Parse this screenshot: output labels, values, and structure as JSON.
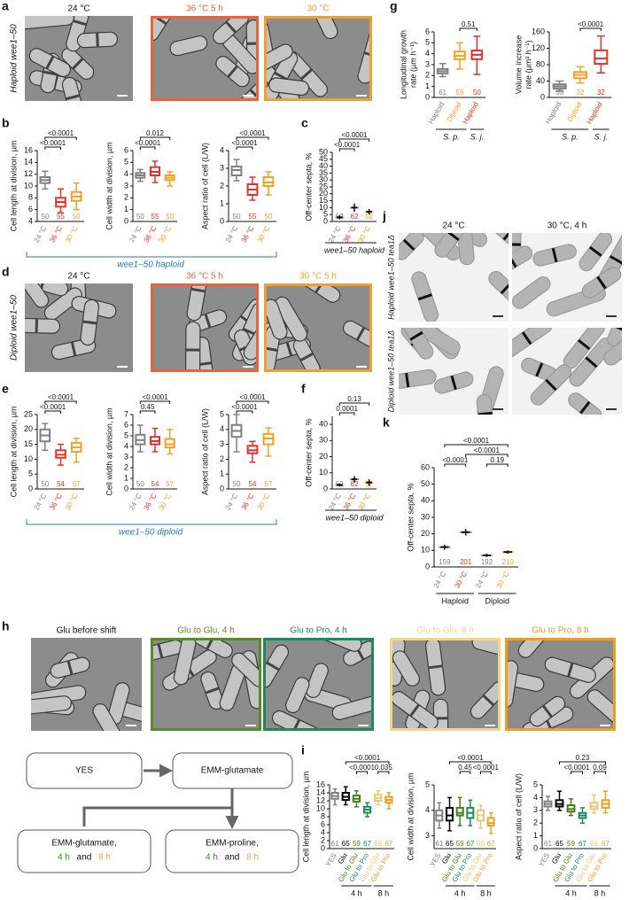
{
  "panel_labels": [
    "a",
    "b",
    "c",
    "d",
    "e",
    "f",
    "g",
    "h",
    "i",
    "j",
    "k"
  ],
  "images": {
    "a": {
      "side_label": "Haploid wee1–50",
      "frames": [
        {
          "label": "24 °C",
          "border": null
        },
        {
          "label": "36 °C 5 h",
          "border": "#e8643c"
        },
        {
          "label": "30 °C",
          "border": "#f0a030"
        }
      ]
    },
    "d": {
      "side_label": "Diploid wee1–50",
      "frames": [
        {
          "label": "24 °C",
          "border": null
        },
        {
          "label": "36 °C 5 h",
          "border": "#e8643c"
        },
        {
          "label": "30 °C 5 h",
          "border": "#f0a030"
        }
      ]
    },
    "j": {
      "columns": [
        "24 °C",
        "30 °C, 4 h"
      ],
      "rows": [
        "Haploid wee1–50 tea1Δ",
        "Diploid wee1–50 tea1Δ"
      ]
    },
    "h": {
      "frames": [
        {
          "label": "Glu before shift",
          "border": null
        },
        {
          "label": "Glu to Glu, 4 h",
          "border": "#5a8a2a"
        },
        {
          "label": "Glu to Pro, 4 h",
          "border": "#1e8a5a"
        },
        {
          "label": "Glu to Glu, 8 h",
          "border": "#f3d58a"
        },
        {
          "label": "Glu to Pro, 8 h",
          "border": "#e8a020"
        }
      ]
    }
  },
  "annotations": [
    "wee1–50 haploid",
    "wee1–50 diploid"
  ],
  "diagram": {
    "yes": "YES",
    "emm_glu": "EMM-glutamate",
    "left": {
      "line1": "EMM-glutamate,",
      "t1": "4 h",
      "and": "and",
      "t2": "8 h"
    },
    "right": {
      "line1": "EMM-proline,",
      "t1": "4 h",
      "and": "and",
      "t2": "8 h"
    }
  },
  "chart_data": [
    {
      "type": "box",
      "ylabel": "Cell length at division, µm",
      "ylim": [
        4,
        16
      ],
      "yticks": [
        4,
        6,
        8,
        10,
        12,
        14,
        16
      ],
      "categories": [
        "24 °C",
        "36 °C",
        "30 °C"
      ],
      "colors": [
        "#808080",
        "#e8302a",
        "#f5a020"
      ],
      "boxes": [
        {
          "min": 9.5,
          "q1": 10.5,
          "median": 11,
          "q3": 11.5,
          "max": 12.5
        },
        {
          "min": 5.5,
          "q1": 6.5,
          "median": 7.3,
          "q3": 8,
          "max": 9.5
        },
        {
          "min": 6,
          "q1": 7.5,
          "median": 8.2,
          "q3": 9,
          "max": 10.5
        }
      ],
      "n": [
        50,
        55,
        50
      ],
      "comparisons": [
        "<0.0001",
        "<0.0001"
      ]
    },
    {
      "type": "box",
      "ylabel": "Cell width at division, µm",
      "ylim": [
        0,
        6
      ],
      "yticks": [
        0,
        1,
        2,
        3,
        4,
        5,
        6
      ],
      "categories": [
        "24 °C",
        "36 °C",
        "30 °C"
      ],
      "colors": [
        "#808080",
        "#e8302a",
        "#f5a020"
      ],
      "boxes": [
        {
          "min": 3.4,
          "q1": 3.7,
          "median": 3.9,
          "q3": 4.1,
          "max": 4.4
        },
        {
          "min": 3.3,
          "q1": 3.9,
          "median": 4.2,
          "q3": 4.6,
          "max": 5.1
        },
        {
          "min": 3,
          "q1": 3.5,
          "median": 3.7,
          "q3": 3.9,
          "max": 4.2
        }
      ],
      "n": [
        50,
        55,
        50
      ],
      "comparisons": [
        "0.012",
        "<0.0001"
      ]
    },
    {
      "type": "box",
      "ylabel": "Aspect ratio of cell (L/W)",
      "ylim": [
        0,
        4
      ],
      "yticks": [
        0,
        1,
        2,
        3,
        4
      ],
      "categories": [
        "24 °C",
        "36 °C",
        "30 °C"
      ],
      "colors": [
        "#808080",
        "#e8302a",
        "#f5a020"
      ],
      "boxes": [
        {
          "min": 2.3,
          "q1": 2.6,
          "median": 2.9,
          "q3": 3.1,
          "max": 3.5
        },
        {
          "min": 1.2,
          "q1": 1.5,
          "median": 1.8,
          "q3": 2.1,
          "max": 2.5
        },
        {
          "min": 1.5,
          "q1": 2,
          "median": 2.2,
          "q3": 2.5,
          "max": 2.8
        }
      ],
      "n": [
        50,
        55,
        50
      ],
      "comparisons": [
        "<0.0001",
        "<0.0001"
      ]
    },
    {
      "type": "dot",
      "ylabel": "Off-center septa, %",
      "ylim": [
        0,
        50
      ],
      "yticks": [
        0,
        5,
        10,
        15,
        20,
        25,
        30,
        35,
        40,
        45,
        50
      ],
      "categories": [
        "24 °C",
        "36 °C",
        "30 °C"
      ],
      "colors": [
        "#808080",
        "#e8302a",
        "#f5a020"
      ],
      "means": [
        3,
        10,
        7
      ],
      "errors": [
        1.5,
        3,
        2
      ],
      "n": [
        52,
        62,
        52
      ],
      "comparisons": [
        "<0.0001",
        "<0.0001"
      ],
      "xlabel": "wee1–50 haploid"
    },
    {
      "type": "box",
      "ylabel": "Cell length at division, µm",
      "ylim": [
        0,
        25
      ],
      "yticks": [
        0,
        5,
        10,
        15,
        20,
        25
      ],
      "categories": [
        "24 °C",
        "36 °C",
        "30 °C"
      ],
      "colors": [
        "#808080",
        "#e8302a",
        "#f5a020"
      ],
      "boxes": [
        {
          "min": 13,
          "q1": 16,
          "median": 18,
          "q3": 20,
          "max": 22
        },
        {
          "min": 8,
          "q1": 10.5,
          "median": 11.5,
          "q3": 13,
          "max": 15
        },
        {
          "min": 9,
          "q1": 12.5,
          "median": 14,
          "q3": 15.5,
          "max": 17
        }
      ],
      "n": [
        50,
        54,
        57
      ],
      "comparisons": [
        "<0.0001",
        "<0.0001"
      ]
    },
    {
      "type": "box",
      "ylabel": "Cell width at division, µm",
      "ylim": [
        0,
        7
      ],
      "yticks": [
        0,
        1,
        2,
        3,
        4,
        5,
        6,
        7
      ],
      "categories": [
        "24 °C",
        "36 °C",
        "30 °C"
      ],
      "colors": [
        "#808080",
        "#e8302a",
        "#f5a020"
      ],
      "boxes": [
        {
          "min": 3.5,
          "q1": 4.2,
          "median": 4.6,
          "q3": 5.1,
          "max": 6
        },
        {
          "min": 3.5,
          "q1": 4.2,
          "median": 4.5,
          "q3": 4.9,
          "max": 5.7
        },
        {
          "min": 3.3,
          "q1": 3.9,
          "median": 4.2,
          "q3": 4.7,
          "max": 5.6
        }
      ],
      "n": [
        50,
        54,
        57
      ],
      "comparisons": [
        "<0.0001",
        "0.45"
      ]
    },
    {
      "type": "box",
      "ylabel": "Aspect ratio of cell (L/W)",
      "ylim": [
        0,
        5
      ],
      "yticks": [
        0,
        1,
        2,
        3,
        4,
        5
      ],
      "categories": [
        "24 °C",
        "36 °C",
        "30 °C"
      ],
      "colors": [
        "#808080",
        "#e8302a",
        "#f5a020"
      ],
      "boxes": [
        {
          "min": 2.5,
          "q1": 3.5,
          "median": 3.9,
          "q3": 4.3,
          "max": 5
        },
        {
          "min": 1.8,
          "q1": 2.4,
          "median": 2.6,
          "q3": 2.9,
          "max": 3.2
        },
        {
          "min": 2.2,
          "q1": 3,
          "median": 3.4,
          "q3": 3.7,
          "max": 4.1
        }
      ],
      "n": [
        50,
        54,
        57
      ],
      "comparisons": [
        "<0.0001",
        "<0.0001"
      ]
    },
    {
      "type": "dot",
      "ylabel": "Off-center septa, %",
      "ylim": [
        0,
        45
      ],
      "yticks": [
        0,
        10,
        20,
        30,
        40
      ],
      "categories": [
        "24 °C",
        "36 °C",
        "30 °C"
      ],
      "colors": [
        "#808080",
        "#e8302a",
        "#f5a020"
      ],
      "means": [
        2.5,
        6,
        4
      ],
      "errors": [
        1,
        2,
        2
      ],
      "n": [
        52,
        62,
        52
      ],
      "comparisons": [
        "0.13",
        "0.0001"
      ],
      "xlabel": "wee1–50 diploid"
    },
    {
      "type": "box",
      "ylabel": [
        "Longitudinal growth",
        "rate (µm h⁻¹)"
      ],
      "ylim": [
        0,
        6
      ],
      "yticks": [
        0,
        1,
        2,
        3,
        4,
        5,
        6
      ],
      "categories": [
        "Haploid",
        "Diploid",
        "Haploid"
      ],
      "colors": [
        "#808080",
        "#f5a020",
        "#e8302a"
      ],
      "boxes": [
        {
          "min": 1.9,
          "q1": 2.2,
          "median": 2.4,
          "q3": 2.6,
          "max": 3.1
        },
        {
          "min": 2.6,
          "q1": 3.5,
          "median": 3.8,
          "q3": 4.2,
          "max": 5
        },
        {
          "min": 2.1,
          "q1": 3.5,
          "median": 3.9,
          "q3": 4.3,
          "max": 5.6
        }
      ],
      "n": [
        61,
        59,
        50
      ],
      "comparisons": [
        "0.51"
      ],
      "groups": [
        "S. p.",
        "S. j."
      ]
    },
    {
      "type": "box",
      "ylabel": [
        "Volume increase",
        "rate (µm³ h⁻¹)"
      ],
      "ylim": [
        0,
        160
      ],
      "yticks": [
        0,
        40,
        80,
        120,
        160
      ],
      "categories": [
        "Haploid",
        "Diploid",
        "Haploid"
      ],
      "colors": [
        "#808080",
        "#f5a020",
        "#e8302a"
      ],
      "boxes": [
        {
          "min": 15,
          "q1": 22,
          "median": 27,
          "q3": 32,
          "max": 40
        },
        {
          "min": 35,
          "q1": 47,
          "median": 55,
          "q3": 62,
          "max": 75
        },
        {
          "min": 60,
          "q1": 82,
          "median": 95,
          "q3": 115,
          "max": 150
        }
      ],
      "n": [
        33,
        32,
        32
      ],
      "comparisons": [
        "<0.0001"
      ],
      "groups": [
        "S. p.",
        "S. j."
      ]
    },
    {
      "type": "dot",
      "ylabel": "Off-center septa, %",
      "ylim": [
        0,
        60
      ],
      "yticks": [
        0,
        10,
        20,
        30,
        40,
        50,
        60
      ],
      "categories": [
        "24 °C",
        "30 °C",
        "24 °C",
        "30 °C"
      ],
      "colors": [
        "#808080",
        "#e8302a",
        "#808080",
        "#f5a020"
      ],
      "means": [
        12,
        21,
        7,
        9
      ],
      "errors": [
        1.5,
        2,
        1,
        1
      ],
      "n": [
        159,
        201,
        192,
        210
      ],
      "comparisons": [
        "<0.0001",
        "<0.0001",
        "<0.0001",
        "0.19"
      ],
      "groups": [
        "Haploid",
        "Diploid"
      ]
    },
    {
      "type": "box",
      "ylabel": "Cell length at division, µm",
      "ylim": [
        0,
        16
      ],
      "yticks": [
        0,
        2,
        4,
        6,
        8,
        10,
        12,
        14,
        16
      ],
      "categories": [
        "YES",
        "Glu",
        "Glu to Glu",
        "Glu to Pro",
        "Glu to Glu",
        "Glu to Pro"
      ],
      "colors": [
        "#808080",
        "#000000",
        "#4a7a1e",
        "#1a8a5a",
        "#e8c870",
        "#e8a020"
      ],
      "boxes": [
        {
          "min": 11,
          "q1": 12.5,
          "median": 13.2,
          "q3": 14,
          "max": 15
        },
        {
          "min": 11,
          "q1": 12.2,
          "median": 13,
          "q3": 14,
          "max": 15.5
        },
        {
          "min": 10.5,
          "q1": 11.8,
          "median": 12.5,
          "q3": 13.3,
          "max": 14.5
        },
        {
          "min": 8,
          "q1": 9,
          "median": 9.8,
          "q3": 10.5,
          "max": 11.5
        },
        {
          "min": 11,
          "q1": 12,
          "median": 12.7,
          "q3": 13.5,
          "max": 14.5
        },
        {
          "min": 10,
          "q1": 11.5,
          "median": 12.2,
          "q3": 13,
          "max": 14
        }
      ],
      "n": [
        61,
        65,
        59,
        67,
        69,
        67
      ],
      "comparisons": [
        "<0.0001",
        "<0.0001",
        "0.035"
      ],
      "groups": [
        "4 h",
        "8 h"
      ]
    },
    {
      "type": "box",
      "ylabel": "Cell width at division, µm",
      "ylim": [
        2.5,
        5
      ],
      "yticks": [
        3,
        4,
        5
      ],
      "categories": [
        "YES",
        "Glu",
        "Glu to Glu",
        "Glu to Pro",
        "Glu to Glu",
        "Glu to Pro"
      ],
      "colors": [
        "#808080",
        "#000000",
        "#4a7a1e",
        "#1a8a5a",
        "#e8c870",
        "#e8a020"
      ],
      "boxes": [
        {
          "min": 3.3,
          "q1": 3.6,
          "median": 3.8,
          "q3": 4,
          "max": 4.3
        },
        {
          "min": 3.2,
          "q1": 3.6,
          "median": 3.8,
          "q3": 4.1,
          "max": 4.5
        },
        {
          "min": 3.4,
          "q1": 3.8,
          "median": 3.9,
          "q3": 4.1,
          "max": 4.5
        },
        {
          "min": 3.4,
          "q1": 3.7,
          "median": 3.9,
          "q3": 4.1,
          "max": 4.4
        },
        {
          "min": 3.3,
          "q1": 3.6,
          "median": 3.8,
          "q3": 4,
          "max": 4.2
        },
        {
          "min": 3.1,
          "q1": 3.4,
          "median": 3.5,
          "q3": 3.7,
          "max": 3.9
        }
      ],
      "n": [
        61,
        65,
        59,
        67,
        69,
        67
      ],
      "comparisons": [
        "<0.0001",
        "0.45",
        "<0.0001"
      ],
      "groups": [
        "4 h",
        "8 h"
      ]
    },
    {
      "type": "box",
      "ylabel": "Aspect ratio of cell (L/W)",
      "ylim": [
        0,
        5
      ],
      "yticks": [
        0,
        1,
        2,
        3,
        4,
        5
      ],
      "categories": [
        "YES",
        "Glu",
        "Glu to Glu",
        "Glu to Pro",
        "Glu to Glu",
        "Glu to Pro"
      ],
      "colors": [
        "#808080",
        "#000000",
        "#4a7a1e",
        "#1a8a5a",
        "#e8c870",
        "#e8a020"
      ],
      "boxes": [
        {
          "min": 3,
          "q1": 3.3,
          "median": 3.5,
          "q3": 3.7,
          "max": 4.1
        },
        {
          "min": 3,
          "q1": 3.3,
          "median": 3.5,
          "q3": 3.8,
          "max": 4.5
        },
        {
          "min": 2.6,
          "q1": 2.9,
          "median": 3.1,
          "q3": 3.4,
          "max": 3.9
        },
        {
          "min": 2,
          "q1": 2.4,
          "median": 2.6,
          "q3": 2.8,
          "max": 3.2
        },
        {
          "min": 2.8,
          "q1": 3.1,
          "median": 3.3,
          "q3": 3.6,
          "max": 4.2
        },
        {
          "min": 2.8,
          "q1": 3.2,
          "median": 3.5,
          "q3": 3.8,
          "max": 4.5
        }
      ],
      "n": [
        61,
        65,
        59,
        67,
        69,
        67
      ],
      "comparisons": [
        "0.23",
        "<0.0001",
        "0.09"
      ],
      "groups": [
        "4 h",
        "8 h"
      ]
    }
  ]
}
